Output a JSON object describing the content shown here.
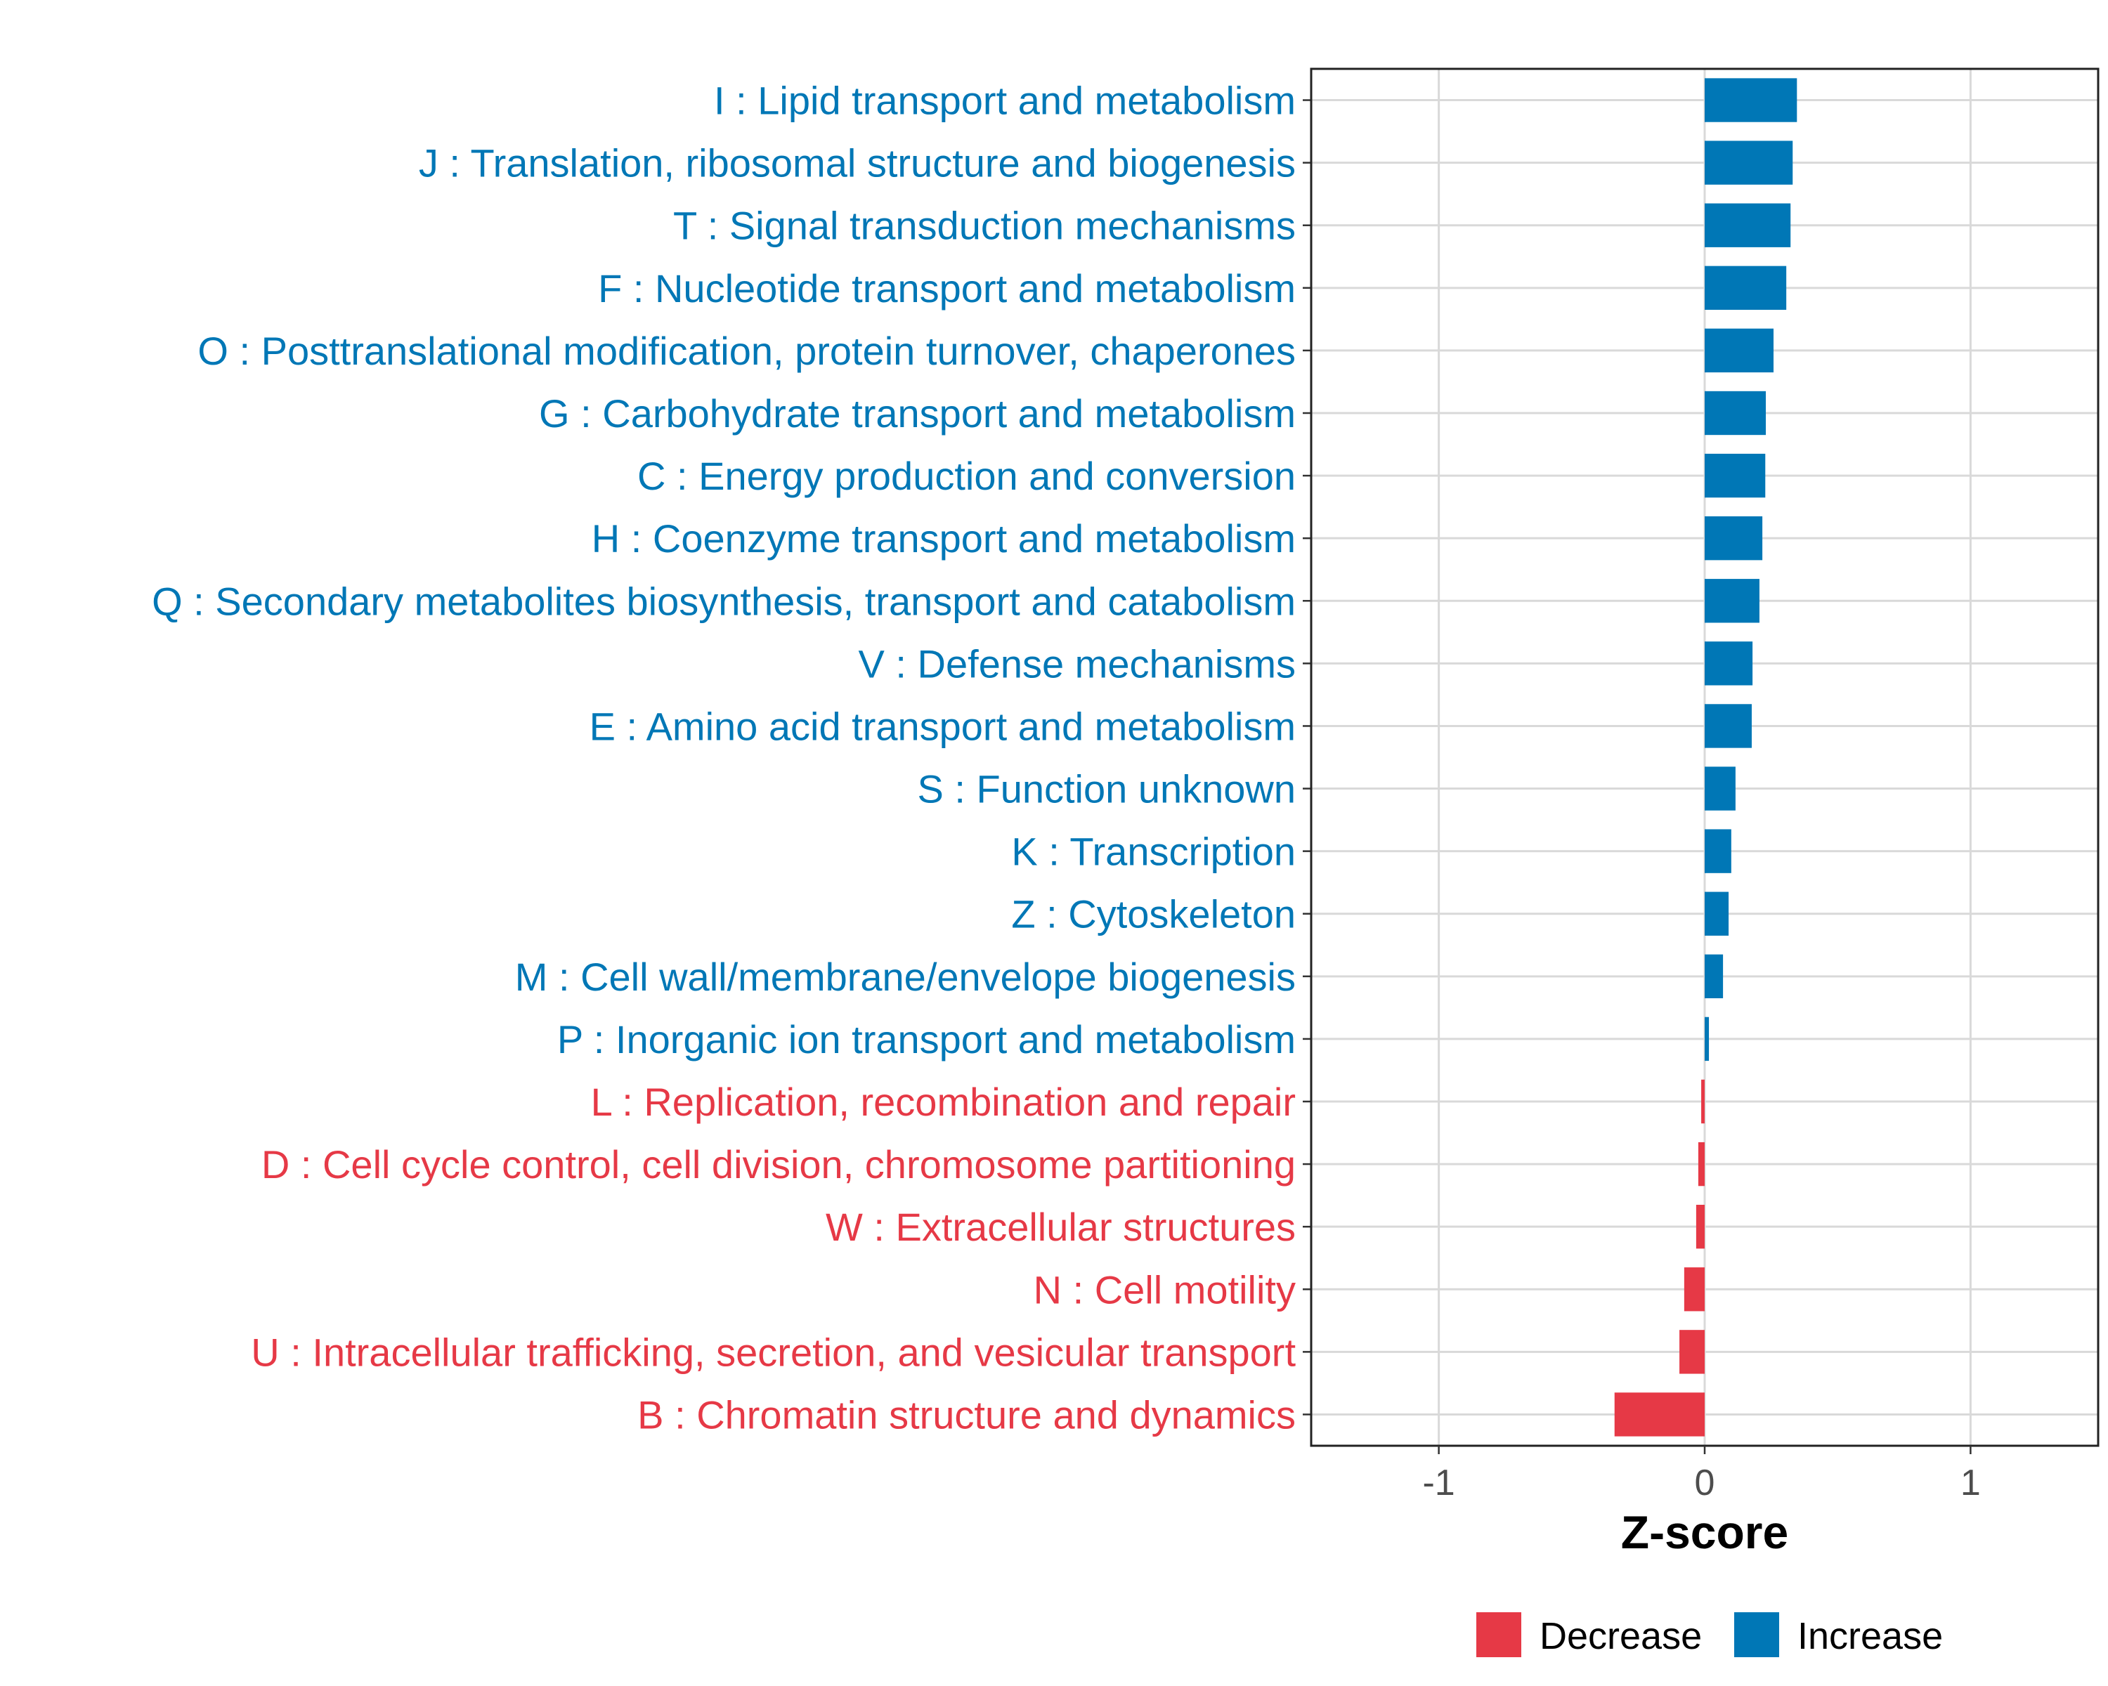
{
  "chart_data": {
    "type": "bar",
    "orientation": "horizontal",
    "title": "",
    "xlabel": "Z-score",
    "ylabel": "",
    "xlim": [
      -1.48,
      1.48
    ],
    "xticks": [
      -1,
      0,
      1
    ],
    "xtick_labels": [
      "-1",
      "0",
      "1"
    ],
    "grid": true,
    "legend": {
      "placement": "bottom",
      "entries": [
        {
          "label": "Decrease",
          "color": "#E63946"
        },
        {
          "label": "Increase",
          "color": "#0077B6"
        }
      ]
    },
    "categories": [
      "I : Lipid transport and metabolism",
      "J : Translation, ribosomal structure and biogenesis",
      "T : Signal transduction mechanisms",
      "F : Nucleotide transport and metabolism",
      "O : Posttranslational modification, protein turnover, chaperones",
      "G : Carbohydrate transport and metabolism",
      "C : Energy production and conversion",
      "H : Coenzyme transport and metabolism",
      "Q : Secondary metabolites biosynthesis, transport and catabolism",
      "V : Defense mechanisms",
      "E : Amino acid transport and metabolism",
      "S : Function unknown",
      "K : Transcription",
      "Z : Cytoskeleton",
      "M : Cell wall/membrane/envelope biogenesis",
      "P : Inorganic ion transport and metabolism",
      "L : Replication, recombination and repair",
      "D : Cell cycle control, cell division, chromosome partitioning",
      "W : Extracellular structures",
      "N : Cell motility",
      "U : Intracellular trafficking, secretion, and vesicular transport",
      "B : Chromatin structure and dynamics"
    ],
    "values": [
      0.347,
      0.331,
      0.323,
      0.307,
      0.259,
      0.23,
      0.228,
      0.217,
      0.206,
      0.18,
      0.177,
      0.116,
      0.1,
      0.09,
      0.069,
      0.016,
      -0.013,
      -0.024,
      -0.032,
      -0.077,
      -0.095,
      -0.339
    ],
    "colors": {
      "increase": "#0077B6",
      "decrease": "#E63946",
      "grid": "#D9D9D9",
      "axis_text": "#4D4D4D"
    }
  }
}
